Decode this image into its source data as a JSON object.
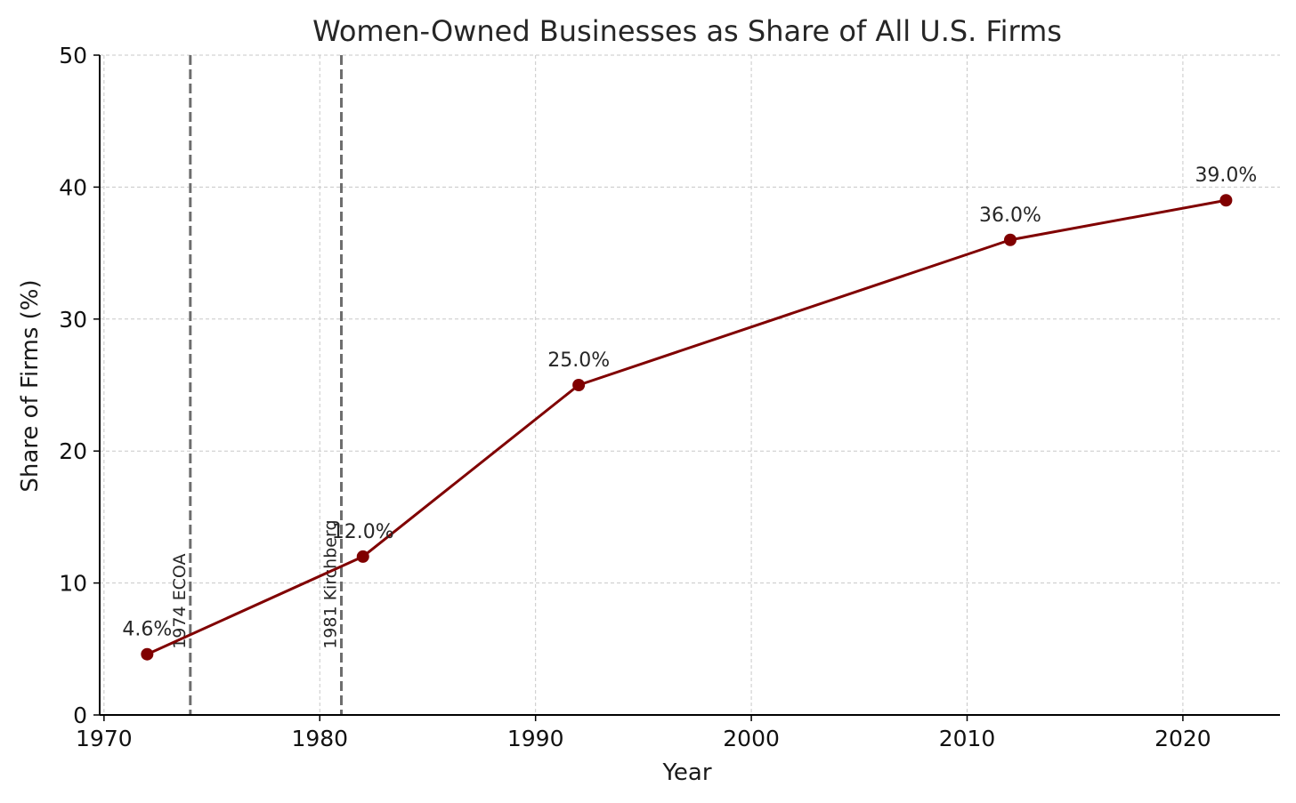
{
  "chart_data": {
    "type": "line",
    "title": "Women-Owned Businesses as Share of All U.S. Firms",
    "xlabel": "Year",
    "ylabel": "Share of Firms (%)",
    "xlim": [
      1969.8,
      2024.5
    ],
    "ylim": [
      0,
      50
    ],
    "xticks": [
      1970,
      1980,
      1990,
      2000,
      2010,
      2020
    ],
    "yticks": [
      0,
      10,
      20,
      30,
      40,
      50
    ],
    "grid": true,
    "legend": "none",
    "series": [
      {
        "color": "#800000",
        "x": [
          1972,
          1982,
          1992,
          2012,
          2022
        ],
        "y": [
          4.6,
          12.0,
          25.0,
          36.0,
          39.0
        ],
        "labels": [
          "4.6%",
          "12.0%",
          "25.0%",
          "36.0%",
          "39.0%"
        ]
      }
    ],
    "events": [
      {
        "x": 1974,
        "label": "1974 ECOA"
      },
      {
        "x": 1981,
        "label": "1981 Kirchberg"
      }
    ],
    "colors": {
      "line": "#800000",
      "event_line": "#6e6e6e",
      "grid": "#c8c8c8",
      "axis": "#000000"
    }
  }
}
